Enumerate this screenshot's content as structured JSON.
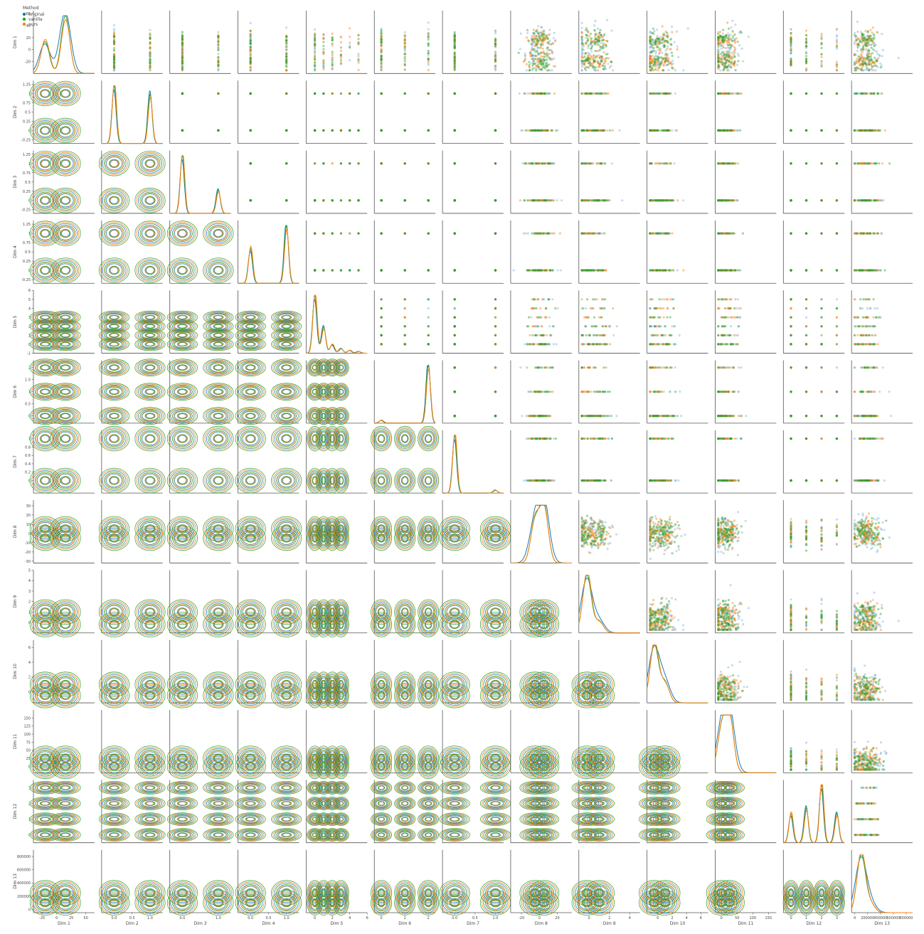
{
  "chart_data": {
    "type": "pairplot",
    "title": "",
    "legend": {
      "title": "Method",
      "placement": "top-left",
      "entries": [
        {
          "name": "original",
          "color": "#1f77b4"
        },
        {
          "name": "vanilla",
          "color": "#2ca02c"
        },
        {
          "name": "ours",
          "color": "#ff7f0e"
        }
      ]
    },
    "upper_triangle": "scatter",
    "diagonal": "kde",
    "lower_triangle": "kde-contour",
    "dims": [
      {
        "label": "Dim 1",
        "range": [
          -40,
          65
        ],
        "yticks": [
          -20,
          0,
          20,
          40,
          60
        ],
        "xticks": [
          "-25",
          "0",
          "25",
          "50"
        ],
        "xtick_values": [
          -25,
          0,
          25,
          50
        ],
        "kind": "continuous",
        "levels": null
      },
      {
        "label": "Dim 2",
        "range": [
          -0.35,
          1.35
        ],
        "yticks": [
          -0.25,
          0.0,
          0.25,
          0.5,
          0.75,
          1.0,
          1.25
        ],
        "xticks": [
          "0.0",
          "0.5",
          "1.0"
        ],
        "xtick_values": [
          0,
          0.5,
          1
        ],
        "kind": "discrete",
        "levels": [
          0,
          1
        ]
      },
      {
        "label": "Dim 3",
        "range": [
          -0.35,
          1.35
        ],
        "yticks": [
          -0.25,
          0.0,
          0.25,
          0.5,
          0.75,
          1.0,
          1.25
        ],
        "xticks": [
          "0.0",
          "1.0"
        ],
        "xtick_values": [
          0,
          1
        ],
        "kind": "discrete",
        "levels": [
          0,
          1
        ]
      },
      {
        "label": "Dim 4",
        "range": [
          -0.35,
          1.35
        ],
        "yticks": [
          -0.25,
          0.0,
          0.25,
          0.5,
          0.75,
          1.0,
          1.25
        ],
        "xticks": [
          "0.0",
          "0.5",
          "1.0"
        ],
        "xtick_values": [
          0,
          0.5,
          1
        ],
        "kind": "discrete",
        "levels": [
          0,
          1
        ]
      },
      {
        "label": "Dim 5",
        "range": [
          -1,
          6
        ],
        "yticks": [
          -1,
          0,
          1,
          2,
          3,
          4,
          5,
          6
        ],
        "xticks": [
          "0",
          "2",
          "4",
          "6"
        ],
        "xtick_values": [
          0,
          2,
          4,
          6
        ],
        "kind": "discrete",
        "levels": [
          0,
          1,
          2,
          3,
          4,
          5
        ]
      },
      {
        "label": "Dim 6",
        "range": [
          -0.3,
          2.3
        ],
        "yticks": [
          0.0,
          0.5,
          1.0,
          1.5,
          2.0
        ],
        "xticks": [
          "0",
          "1",
          "2"
        ],
        "xtick_values": [
          0,
          1,
          2
        ],
        "kind": "discrete",
        "levels": [
          0,
          1,
          2
        ]
      },
      {
        "label": "Dim 7",
        "range": [
          -0.3,
          1.2
        ],
        "yticks": [
          0.0,
          0.2,
          0.4,
          0.6,
          0.8,
          1.0
        ],
        "xticks": [
          "0.0",
          "0.5",
          "1.0"
        ],
        "xtick_values": [
          0,
          0.5,
          1
        ],
        "kind": "discrete",
        "levels": [
          0,
          1
        ]
      },
      {
        "label": "Dim 8",
        "range": [
          -32,
          36
        ],
        "yticks": [
          -30,
          -20,
          -10,
          0,
          10,
          20,
          30
        ],
        "xticks": [
          "-20",
          "0",
          "20"
        ],
        "xtick_values": [
          -20,
          0,
          20
        ],
        "kind": "continuous",
        "levels": null
      },
      {
        "label": "Dim 9",
        "range": [
          -1,
          5
        ],
        "yticks": [
          0,
          1,
          2,
          3,
          4,
          5
        ],
        "xticks": [
          "0",
          "2",
          "4"
        ],
        "xtick_values": [
          0,
          2,
          4
        ],
        "kind": "continuous",
        "levels": null
      },
      {
        "label": "Dim 10",
        "range": [
          -1.5,
          7
        ],
        "yticks": [
          0,
          2,
          4,
          6
        ],
        "xticks": [
          "0",
          "2",
          "4",
          "6"
        ],
        "xtick_values": [
          0,
          2,
          4,
          6
        ],
        "kind": "continuous",
        "levels": null
      },
      {
        "label": "Dim 11",
        "range": [
          -20,
          175
        ],
        "yticks": [
          0,
          25,
          50,
          75,
          100,
          125,
          150
        ],
        "xticks": [
          "0",
          "50",
          "100",
          "150"
        ],
        "xtick_values": [
          0,
          50,
          100,
          150
        ],
        "kind": "continuous",
        "levels": null
      },
      {
        "label": "Dim 12",
        "range": [
          -0.5,
          3.5
        ],
        "yticks": [
          0,
          1,
          2,
          3
        ],
        "xticks": [
          "0",
          "1",
          "2",
          "3"
        ],
        "xtick_values": [
          0,
          1,
          2,
          3
        ],
        "kind": "discrete",
        "levels": [
          0,
          1,
          2,
          3
        ]
      },
      {
        "label": "Dim 13",
        "range": [
          -50000,
          900000
        ],
        "yticks": [
          0,
          200000,
          400000,
          600000,
          800000
        ],
        "xticks": [
          "0",
          "200000",
          "400000",
          "600000",
          "800000"
        ],
        "xtick_values": [
          0,
          200000,
          400000,
          600000,
          800000
        ],
        "kind": "continuous",
        "levels": null
      }
    ],
    "diagonal_peaks": [
      {
        "dim": "Dim 1",
        "peaks": [
          -20,
          15
        ],
        "heights": [
          0.55,
          1.0
        ]
      },
      {
        "dim": "Dim 2",
        "peaks": [
          0,
          1
        ],
        "heights": [
          1.0,
          0.85
        ]
      },
      {
        "dim": "Dim 3",
        "peaks": [
          0,
          1
        ],
        "heights": [
          1.0,
          0.4
        ]
      },
      {
        "dim": "Dim 4",
        "peaks": [
          0,
          1
        ],
        "heights": [
          0.6,
          1.0
        ]
      },
      {
        "dim": "Dim 5",
        "peaks": [
          0,
          1,
          2,
          3,
          4,
          5
        ],
        "heights": [
          1.0,
          0.45,
          0.15,
          0.08,
          0.05,
          0.03
        ]
      },
      {
        "dim": "Dim 6",
        "peaks": [
          0,
          2
        ],
        "heights": [
          0.05,
          1.0
        ]
      },
      {
        "dim": "Dim 7",
        "peaks": [
          0,
          1
        ],
        "heights": [
          1.0,
          0.05
        ]
      },
      {
        "dim": "Dim 8",
        "peaks": [
          -5,
          5
        ],
        "heights": [
          0.7,
          1.0
        ]
      },
      {
        "dim": "Dim 9",
        "peaks": [
          -0.2,
          1
        ],
        "heights": [
          1.0,
          0.2
        ]
      },
      {
        "dim": "Dim 10",
        "peaks": [
          -0.5,
          1
        ],
        "heights": [
          1.0,
          0.35
        ]
      },
      {
        "dim": "Dim 11",
        "peaks": [
          0,
          25
        ],
        "heights": [
          0.7,
          1.0
        ]
      },
      {
        "dim": "Dim 12",
        "peaks": [
          0,
          1,
          2,
          3
        ],
        "heights": [
          0.5,
          0.6,
          1.0,
          0.5
        ]
      },
      {
        "dim": "Dim 13",
        "peaks": [
          100000,
          250000
        ],
        "heights": [
          1.0,
          0.15
        ]
      }
    ]
  }
}
